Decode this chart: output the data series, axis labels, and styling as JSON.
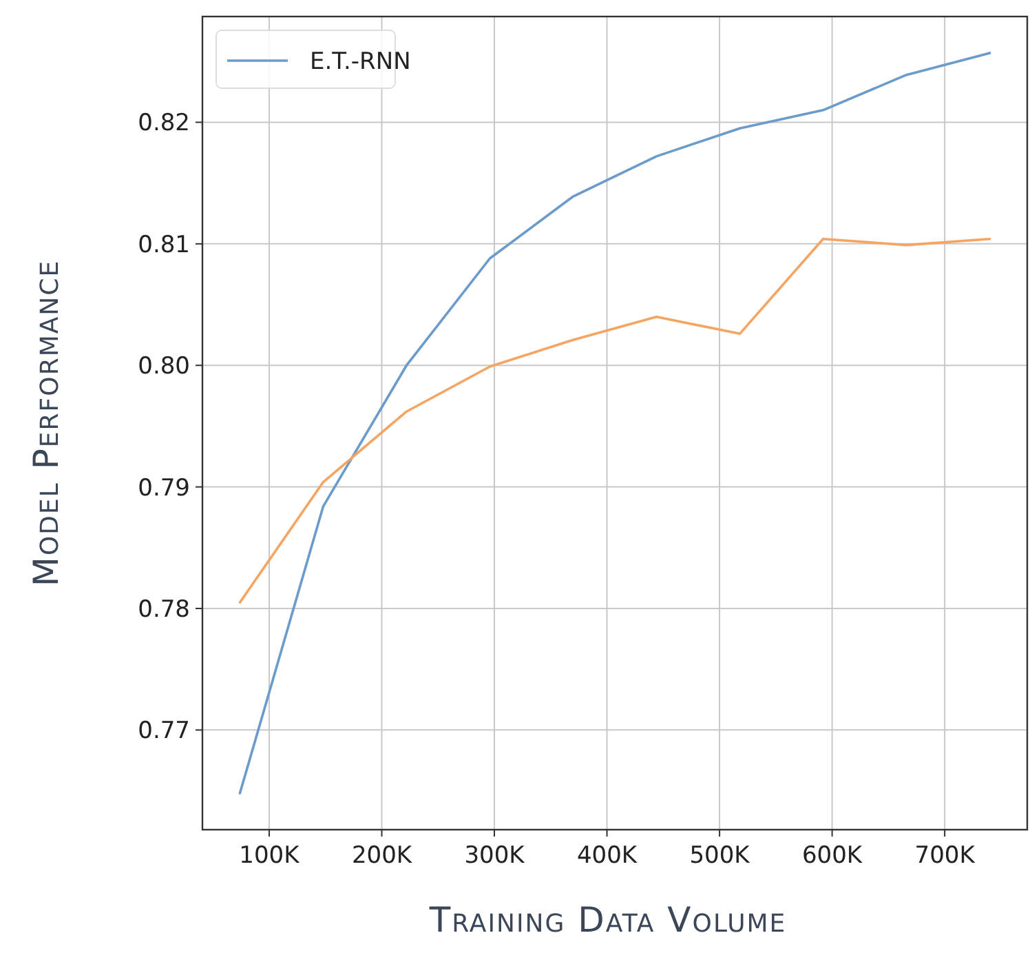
{
  "chart_data": {
    "type": "line",
    "xlabel": "Training Data Volume",
    "ylabel": "Model Performance",
    "xlim": [
      40700,
      773300
    ],
    "ylim": [
      0.7618,
      0.8287
    ],
    "xticks": [
      {
        "value": 100000,
        "label": "100K"
      },
      {
        "value": 200000,
        "label": "200K"
      },
      {
        "value": 300000,
        "label": "300K"
      },
      {
        "value": 400000,
        "label": "400K"
      },
      {
        "value": 500000,
        "label": "500K"
      },
      {
        "value": 600000,
        "label": "600K"
      },
      {
        "value": 700000,
        "label": "700K"
      }
    ],
    "yticks": [
      {
        "value": 0.77,
        "label": "0.77"
      },
      {
        "value": 0.78,
        "label": "0.78"
      },
      {
        "value": 0.79,
        "label": "0.79"
      },
      {
        "value": 0.8,
        "label": "0.80"
      },
      {
        "value": 0.81,
        "label": "0.81"
      },
      {
        "value": 0.82,
        "label": "0.82"
      }
    ],
    "x": [
      74000,
      148000,
      222000,
      296000,
      370000,
      444000,
      518000,
      592000,
      666000,
      740000
    ],
    "series": [
      {
        "name": "E.T.-RNN",
        "color": "#6a9bcb",
        "values": [
          0.7648,
          0.7884,
          0.8,
          0.8088,
          0.8139,
          0.8172,
          0.8195,
          0.821,
          0.8239,
          0.8257
        ]
      },
      {
        "color": "#f5a561",
        "values": [
          0.7805,
          0.7904,
          0.7962,
          0.7999,
          0.8021,
          0.804,
          0.8026,
          0.8104,
          0.8099,
          0.8104
        ]
      }
    ],
    "grid": true,
    "legend": "top left",
    "marker": "none",
    "line_style": "solid"
  }
}
